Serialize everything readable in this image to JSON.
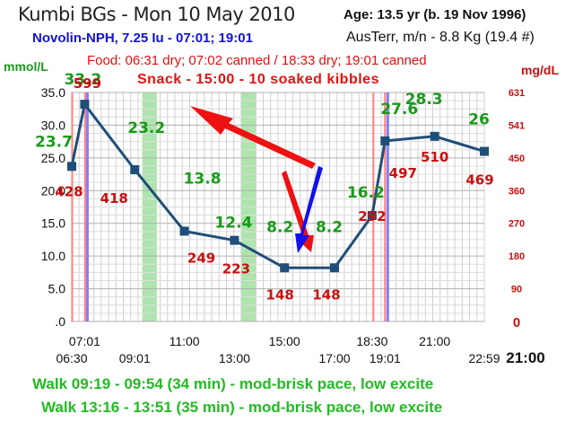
{
  "header": {
    "title": "Kumbi BGs - Mon 10 May 2010",
    "insulin": "Novolin-NPH, 7.25 Iu - 07:01; 19:01",
    "age": "Age: 13.5  yr (b. 19 Nov 1996)",
    "weight": "AusTerr, m/n - 8.8 Kg (19.4 #)",
    "food": "Food: 06:31 dry; 07:02 canned / 18:33 dry; 19:01 canned",
    "snack": "Snack - 15:00 - 10 soaked kibbles"
  },
  "axes": {
    "left_unit": "mmol/L",
    "right_unit": "mg/dL"
  },
  "footer": {
    "walk1": "Walk 09:19 - 09:54 (34 min) - mod-brisk pace, low excite",
    "walk2": "Walk 13:16 - 13:51 (35 min) - mod-brisk pace, low excite"
  },
  "colors": {
    "line": "#1f4e79",
    "mmol_label": "#1a9a1a",
    "mgdl_label": "#c81010",
    "walk_band": "#9be39b",
    "food_line": "#ff8080",
    "insulin_line": "#8080ff",
    "arrow": "#ee1111",
    "insulin_arrow": "#1111ee"
  },
  "chart_data": {
    "type": "line",
    "ylabel": "mmol/L",
    "ylabel_right": "mg/dL",
    "ylim": [
      0,
      35
    ],
    "yticks": [
      ".0",
      "5.0",
      "10.0",
      "15.0",
      "20.0",
      "25.0",
      "30.0",
      "35.0"
    ],
    "yticks_right": [
      "0",
      "90",
      "180",
      "270",
      "360",
      "450",
      "541",
      "631"
    ],
    "xlim": [
      "06:30",
      "22:59"
    ],
    "xticks_top": [
      "07:01",
      "11:00",
      "15:00",
      "18:30",
      "21:00"
    ],
    "xticks_bottom": [
      "06:30",
      "09:01",
      "13:00",
      "17:00",
      "19:01",
      "22:59"
    ],
    "xlabel_extra": "21:00",
    "grid": true,
    "series": [
      {
        "points": [
          {
            "time": "06:30",
            "mmol": 23.7,
            "mgdl": 428
          },
          {
            "time": "07:01",
            "mmol": 33.2,
            "mgdl": 599
          },
          {
            "time": "09:01",
            "mmol": 23.2,
            "mgdl": 418
          },
          {
            "time": "11:00",
            "mmol": 13.8,
            "mgdl": 249
          },
          {
            "time": "13:00",
            "mmol": 12.4,
            "mgdl": 223
          },
          {
            "time": "15:00",
            "mmol": 8.2,
            "mgdl": 148
          },
          {
            "time": "17:00",
            "mmol": 8.2,
            "mgdl": 148
          },
          {
            "time": "18:30",
            "mmol": 16.2,
            "mgdl": 292
          },
          {
            "time": "19:01",
            "mmol": 27.6,
            "mgdl": 497
          },
          {
            "time": "21:00",
            "mmol": 28.3,
            "mgdl": 510
          },
          {
            "time": "22:59",
            "mmol": 26.0,
            "mgdl": 469
          }
        ]
      }
    ],
    "walk_bands": [
      [
        "09:19",
        "09:54"
      ],
      [
        "13:16",
        "13:51"
      ]
    ],
    "food_times": [
      "06:31",
      "07:02",
      "18:33",
      "19:01"
    ],
    "insulin_times": [
      "07:01",
      "19:01"
    ]
  }
}
